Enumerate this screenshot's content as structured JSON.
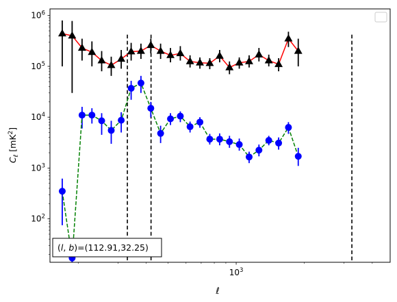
{
  "chart_data": {
    "type": "scatter",
    "xlabel": "ℓ",
    "ylabel": "C_ℓ  [mK²]",
    "xscale": "log",
    "yscale": "log",
    "xlim": [
      150,
      4800
    ],
    "ylim": [
      14,
      1350000
    ],
    "grid": false,
    "legend_placement": "top-right",
    "x_ticks": [
      {
        "value": 1000,
        "base": "10",
        "exp": "3"
      }
    ],
    "y_ticks": [
      {
        "value": 100,
        "base": "10",
        "exp": "2"
      },
      {
        "value": 1000,
        "base": "10",
        "exp": "3"
      },
      {
        "value": 10000,
        "base": "10",
        "exp": "4"
      },
      {
        "value": 100000,
        "base": "10",
        "exp": "5"
      },
      {
        "value": 1000000,
        "base": "10",
        "exp": "6"
      }
    ],
    "vlines": [
      330,
      420,
      3250
    ],
    "annotation": {
      "text": "(l, b)=(112.91,32.25)",
      "prefix": "(",
      "var1": "l",
      "sep": ", ",
      "var2": "b",
      "suffix": ")=(112.91,32.25)"
    },
    "series": [
      {
        "line_color": "#ff0000",
        "line_style": "solid",
        "marker": "triangle",
        "marker_color": "#000000",
        "errorbar_color": "#000000",
        "points": [
          {
            "x": 170,
            "y": 440000,
            "lo": 100000,
            "hi": 800000
          },
          {
            "x": 188,
            "y": 400000,
            "lo": 30000,
            "hi": 780000
          },
          {
            "x": 208,
            "y": 230000,
            "lo": 130000,
            "hi": 350000
          },
          {
            "x": 230,
            "y": 190000,
            "lo": 100000,
            "hi": 310000
          },
          {
            "x": 254,
            "y": 130000,
            "lo": 80000,
            "hi": 200000
          },
          {
            "x": 280,
            "y": 105000,
            "lo": 65000,
            "hi": 155000
          },
          {
            "x": 310,
            "y": 140000,
            "lo": 90000,
            "hi": 210000
          },
          {
            "x": 343,
            "y": 195000,
            "lo": 130000,
            "hi": 290000
          },
          {
            "x": 379,
            "y": 200000,
            "lo": 140000,
            "hi": 280000
          },
          {
            "x": 419,
            "y": 260000,
            "lo": 180000,
            "hi": 350000
          },
          {
            "x": 463,
            "y": 200000,
            "lo": 140000,
            "hi": 280000
          },
          {
            "x": 512,
            "y": 165000,
            "lo": 120000,
            "hi": 230000
          },
          {
            "x": 566,
            "y": 180000,
            "lo": 130000,
            "hi": 250000
          },
          {
            "x": 625,
            "y": 125000,
            "lo": 95000,
            "hi": 165000
          },
          {
            "x": 691,
            "y": 118000,
            "lo": 90000,
            "hi": 150000
          },
          {
            "x": 764,
            "y": 115000,
            "lo": 88000,
            "hi": 145000
          },
          {
            "x": 845,
            "y": 160000,
            "lo": 120000,
            "hi": 210000
          },
          {
            "x": 934,
            "y": 95000,
            "lo": 70000,
            "hi": 125000
          },
          {
            "x": 1032,
            "y": 118000,
            "lo": 90000,
            "hi": 150000
          },
          {
            "x": 1141,
            "y": 125000,
            "lo": 95000,
            "hi": 165000
          },
          {
            "x": 1261,
            "y": 170000,
            "lo": 125000,
            "hi": 230000
          },
          {
            "x": 1394,
            "y": 130000,
            "lo": 100000,
            "hi": 170000
          },
          {
            "x": 1541,
            "y": 110000,
            "lo": 80000,
            "hi": 145000
          },
          {
            "x": 1703,
            "y": 350000,
            "lo": 240000,
            "hi": 480000
          },
          {
            "x": 1882,
            "y": 200000,
            "lo": 100000,
            "hi": 350000
          }
        ]
      },
      {
        "line_color": "#008000",
        "line_style": "dashed",
        "marker": "circle",
        "marker_color": "#0000ff",
        "errorbar_color": "#0000ff",
        "points": [
          {
            "x": 170,
            "y": 350,
            "lo": 75,
            "hi": 620
          },
          {
            "x": 188,
            "y": 17,
            "lo": 10,
            "hi": 30
          },
          {
            "x": 208,
            "y": 11000,
            "lo": 6000,
            "hi": 16000
          },
          {
            "x": 230,
            "y": 11000,
            "lo": 7500,
            "hi": 15000
          },
          {
            "x": 254,
            "y": 8500,
            "lo": 4500,
            "hi": 12000
          },
          {
            "x": 280,
            "y": 5500,
            "lo": 3000,
            "hi": 8500
          },
          {
            "x": 310,
            "y": 8700,
            "lo": 5000,
            "hi": 12500
          },
          {
            "x": 343,
            "y": 37000,
            "lo": 22000,
            "hi": 52000
          },
          {
            "x": 379,
            "y": 47000,
            "lo": 30000,
            "hi": 65000
          },
          {
            "x": 419,
            "y": 15000,
            "lo": 10000,
            "hi": 20000
          },
          {
            "x": 463,
            "y": 4800,
            "lo": 3100,
            "hi": 6800
          },
          {
            "x": 512,
            "y": 9300,
            "lo": 7000,
            "hi": 12000
          },
          {
            "x": 566,
            "y": 10500,
            "lo": 8000,
            "hi": 13000
          },
          {
            "x": 625,
            "y": 6500,
            "lo": 5000,
            "hi": 8200
          },
          {
            "x": 691,
            "y": 8000,
            "lo": 6200,
            "hi": 10000
          },
          {
            "x": 764,
            "y": 3700,
            "lo": 2900,
            "hi": 4700
          },
          {
            "x": 845,
            "y": 3700,
            "lo": 2800,
            "hi": 4800
          },
          {
            "x": 934,
            "y": 3300,
            "lo": 2500,
            "hi": 4300
          },
          {
            "x": 1032,
            "y": 2900,
            "lo": 2200,
            "hi": 3800
          },
          {
            "x": 1141,
            "y": 1650,
            "lo": 1250,
            "hi": 2100
          },
          {
            "x": 1261,
            "y": 2250,
            "lo": 1700,
            "hi": 2900
          },
          {
            "x": 1394,
            "y": 3500,
            "lo": 2800,
            "hi": 4300
          },
          {
            "x": 1541,
            "y": 3100,
            "lo": 2300,
            "hi": 4000
          },
          {
            "x": 1703,
            "y": 6300,
            "lo": 4700,
            "hi": 8000
          },
          {
            "x": 1882,
            "y": 1700,
            "lo": 1100,
            "hi": 2500
          }
        ]
      }
    ]
  }
}
